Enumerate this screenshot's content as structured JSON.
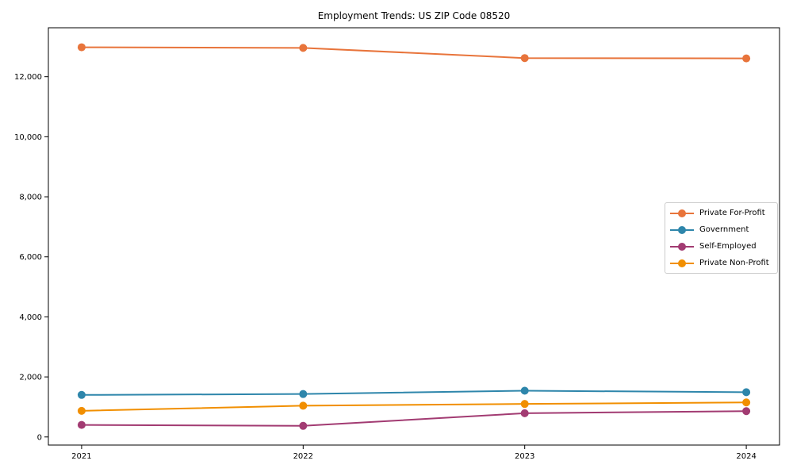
{
  "chart_data": {
    "type": "line",
    "title": "Employment Trends: US ZIP Code 08520",
    "xlabel": "",
    "ylabel": "",
    "x": [
      2021,
      2022,
      2023,
      2024
    ],
    "x_tick_labels": [
      "2021",
      "2022",
      "2023",
      "2024"
    ],
    "y_ticks": [
      0,
      2000,
      4000,
      6000,
      8000,
      10000,
      12000
    ],
    "y_tick_labels": [
      "0",
      "2,000",
      "4,000",
      "6,000",
      "8,000",
      "10,000",
      "12,000"
    ],
    "xlim": [
      2020.85,
      2024.15
    ],
    "ylim": [
      -270,
      13630
    ],
    "grid": false,
    "legend_position": "center-right",
    "marker": "circle",
    "axis_color": "#000000",
    "background_color": "#ffffff",
    "legend_border_color": "#cccccc",
    "series": [
      {
        "name": "Private For-Profit",
        "color": "#E8743B",
        "values": [
          12980,
          12960,
          12620,
          12610
        ]
      },
      {
        "name": "Government",
        "color": "#2E86AB",
        "values": [
          1400,
          1430,
          1540,
          1490
        ]
      },
      {
        "name": "Self-Employed",
        "color": "#A23B72",
        "values": [
          400,
          370,
          790,
          860
        ]
      },
      {
        "name": "Private Non-Profit",
        "color": "#F18F01",
        "values": [
          870,
          1040,
          1100,
          1150
        ]
      }
    ]
  }
}
